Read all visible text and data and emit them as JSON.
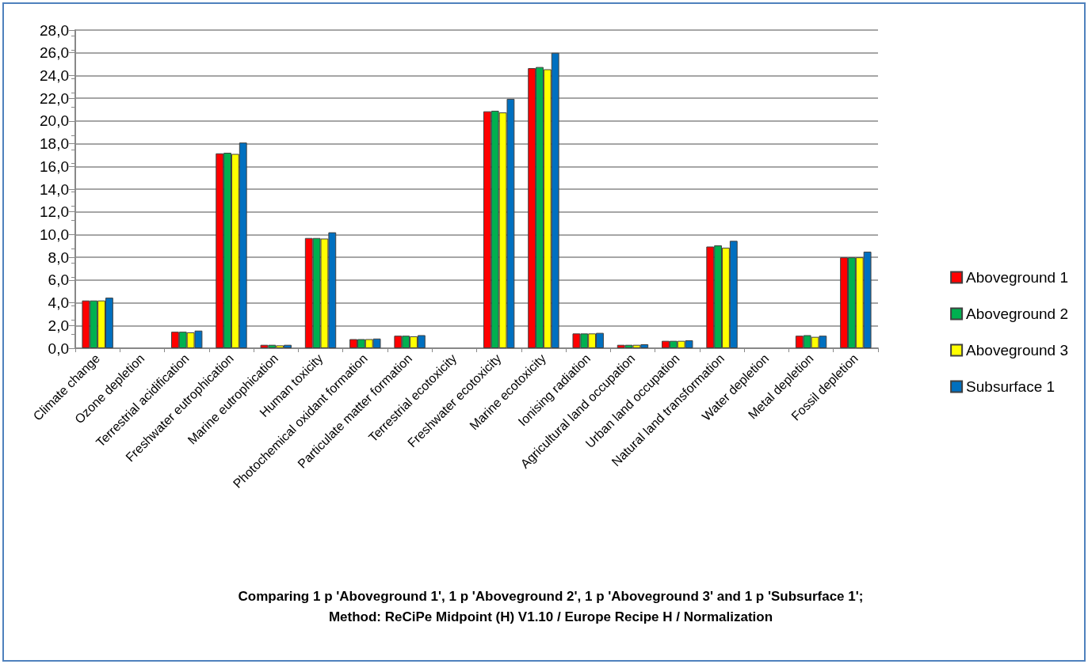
{
  "chart_data": {
    "type": "bar",
    "title": "Comparing 1 p 'Aboveground 1', 1 p 'Aboveground 2', 1 p 'Aboveground 3' and 1 p 'Subsurface 1';\nMethod: ReCiPe Midpoint (H) V1.10 / Europe Recipe H / Normalization",
    "categories": [
      "Climate change",
      "Ozone depletion",
      "Terrestrial acidification",
      "Freshwater eutrophication",
      "Marine eutrophication",
      "Human toxicity",
      "Photochemical oxidant formation",
      "Particulate matter formation",
      "Terrestrial ecotoxicity",
      "Freshwater ecotoxicity",
      "Marine ecotoxicity",
      "Ionising radiation",
      "Agricultural land occupation",
      "Urban land occupation",
      "Natural land transformation",
      "Water depletion",
      "Metal depletion",
      "Fossil depletion"
    ],
    "series": [
      {
        "name": "Aboveground 1",
        "color": "#ff0000",
        "values": [
          4.2,
          0,
          1.45,
          17.15,
          0.3,
          9.7,
          0.8,
          1.1,
          0,
          20.85,
          24.65,
          1.3,
          0.3,
          0.65,
          8.95,
          0,
          1.1,
          8.0
        ]
      },
      {
        "name": "Aboveground 2",
        "color": "#00b050",
        "values": [
          4.2,
          0,
          1.45,
          17.2,
          0.3,
          9.7,
          0.8,
          1.1,
          0,
          20.9,
          24.75,
          1.3,
          0.3,
          0.65,
          9.05,
          0,
          1.15,
          8.0
        ]
      },
      {
        "name": "Aboveground 3",
        "color": "#ffff00",
        "values": [
          4.2,
          0,
          1.4,
          17.1,
          0.25,
          9.65,
          0.8,
          1.05,
          0,
          20.75,
          24.55,
          1.3,
          0.3,
          0.65,
          8.85,
          0,
          1.0,
          8.0
        ]
      },
      {
        "name": "Subsurface 1",
        "color": "#0070c0",
        "values": [
          4.45,
          0,
          1.55,
          18.1,
          0.3,
          10.2,
          0.85,
          1.15,
          0,
          21.95,
          26.0,
          1.35,
          0.35,
          0.7,
          9.45,
          0,
          1.1,
          8.5
        ]
      }
    ],
    "ylim": [
      0,
      28
    ],
    "yticks": [
      {
        "value": 0,
        "label": "0,0"
      },
      {
        "value": 2,
        "label": "2,0"
      },
      {
        "value": 4,
        "label": "4,0"
      },
      {
        "value": 6,
        "label": "6,0"
      },
      {
        "value": 8,
        "label": "8,0"
      },
      {
        "value": 10,
        "label": "10,0"
      },
      {
        "value": 12,
        "label": "12,0"
      },
      {
        "value": 14,
        "label": "14,0"
      },
      {
        "value": 16,
        "label": "16,0"
      },
      {
        "value": 18,
        "label": "18,0"
      },
      {
        "value": 20,
        "label": "20,0"
      },
      {
        "value": 22,
        "label": "22,0"
      },
      {
        "value": 24,
        "label": "24,0"
      },
      {
        "value": 26,
        "label": "26,0"
      },
      {
        "value": 28,
        "label": "28,0"
      }
    ],
    "grid": "y",
    "legend": "right"
  }
}
